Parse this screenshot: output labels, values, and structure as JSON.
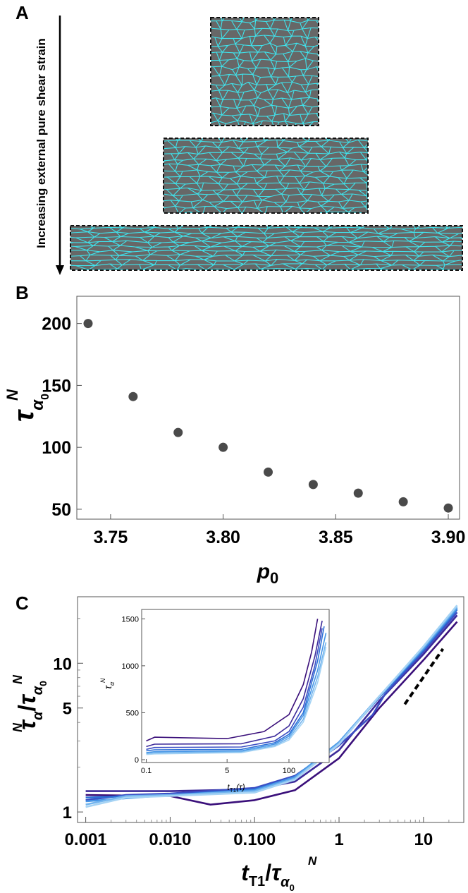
{
  "panel_a": {
    "letter": "A",
    "arrow_label": "Increasing external pure shear strain",
    "colors": {
      "cell_fill": "#676767",
      "cell_edge": "#3fe3ec",
      "border": "#111111"
    }
  },
  "chart_data": [
    {
      "panel": "B",
      "type": "scatter",
      "x": [
        3.74,
        3.76,
        3.78,
        3.8,
        3.82,
        3.84,
        3.86,
        3.88,
        3.9
      ],
      "y": [
        200,
        141,
        112,
        100,
        80,
        70,
        63,
        56,
        51
      ],
      "xlim": [
        3.735,
        3.905
      ],
      "ylim": [
        42,
        222
      ],
      "xticks": [
        "3.75",
        "3.80",
        "3.85",
        "3.90"
      ],
      "yticks": [
        "50",
        "100",
        "150",
        "200"
      ],
      "xlabel": {
        "main": "p",
        "sub": "0"
      },
      "ylabel": {
        "main": "τ",
        "sup": "N",
        "sub": "α",
        "subsub": "0"
      },
      "marker_color": "#4a4a4a"
    },
    {
      "panel": "C",
      "type": "line",
      "xscale": "log",
      "yscale": "log",
      "xlim": [
        0.0008,
        30
      ],
      "ylim": [
        0.85,
        28
      ],
      "xticks": [
        "0.001",
        "0.010",
        "0.100",
        "1",
        "10"
      ],
      "yticks": [
        "1",
        "5",
        "10"
      ],
      "xlabel": {
        "main": "t",
        "sub": "T1",
        "div": "τ",
        "div_sup": "N",
        "div_sub": "α",
        "div_subsub": "0"
      },
      "ylabel": {
        "main": "τ",
        "sup": "N",
        "sub": "α",
        "div": "τ",
        "div_sup": "N",
        "div_sub": "α",
        "div_subsub": "0"
      },
      "series": [
        {
          "color": "#3a0f7a",
          "values": [
            [
              0.001,
              1.3
            ],
            [
              0.01,
              1.28
            ],
            [
              0.03,
              1.12
            ],
            [
              0.1,
              1.2
            ],
            [
              0.3,
              1.4
            ],
            [
              1,
              2.3
            ],
            [
              3,
              5
            ],
            [
              10,
              10.5
            ],
            [
              25,
              19
            ]
          ]
        },
        {
          "color": "#3c2a9a",
          "values": [
            [
              0.001,
              1.38
            ],
            [
              0.01,
              1.38
            ],
            [
              0.1,
              1.42
            ],
            [
              0.3,
              1.6
            ],
            [
              1,
              2.6
            ],
            [
              3,
              5.6
            ],
            [
              10,
              11.5
            ],
            [
              25,
              21
            ]
          ]
        },
        {
          "color": "#3b4ec4",
          "values": [
            [
              0.001,
              1.2
            ],
            [
              0.003,
              1.3
            ],
            [
              0.01,
              1.33
            ],
            [
              0.1,
              1.45
            ],
            [
              0.3,
              1.75
            ],
            [
              1,
              2.8
            ],
            [
              2.5,
              4.5
            ],
            [
              3.5,
              6.2
            ],
            [
              10,
              12
            ],
            [
              25,
              22
            ]
          ]
        },
        {
          "color": "#2c70d6",
          "values": [
            [
              0.001,
              1.25
            ],
            [
              0.01,
              1.3
            ],
            [
              0.1,
              1.42
            ],
            [
              0.3,
              1.7
            ],
            [
              1,
              2.9
            ],
            [
              3,
              5.9
            ],
            [
              10,
              12.3
            ],
            [
              25,
              23
            ]
          ]
        },
        {
          "color": "#4595e6",
          "values": [
            [
              0.001,
              1.18
            ],
            [
              0.01,
              1.3
            ],
            [
              0.1,
              1.4
            ],
            [
              0.3,
              1.72
            ],
            [
              1,
              2.95
            ],
            [
              3,
              6
            ],
            [
              10,
              12.5
            ],
            [
              25,
              23.5
            ]
          ]
        },
        {
          "color": "#72b4ee",
          "values": [
            [
              0.001,
              1.12
            ],
            [
              0.003,
              1.28
            ],
            [
              0.01,
              1.3
            ],
            [
              0.1,
              1.38
            ],
            [
              0.3,
              1.68
            ],
            [
              1,
              2.9
            ],
            [
              3,
              6
            ],
            [
              10,
              12.8
            ],
            [
              25,
              24
            ]
          ]
        },
        {
          "color": "#a5d3f4",
          "values": [
            [
              0.001,
              1.08
            ],
            [
              0.003,
              1.25
            ],
            [
              0.01,
              1.28
            ],
            [
              0.1,
              1.35
            ],
            [
              0.3,
              1.65
            ],
            [
              1,
              2.85
            ],
            [
              3,
              6
            ],
            [
              10,
              13
            ],
            [
              25,
              24.5
            ]
          ]
        }
      ],
      "reference_line": {
        "style": "dashed",
        "color": "#000000",
        "values": [
          [
            6,
            5.3
          ],
          [
            17,
            12.5
          ]
        ]
      },
      "inset": {
        "type": "line",
        "xscale": "log",
        "xlim": [
          0.08,
          700
        ],
        "ylim": [
          -30,
          1600
        ],
        "xticks": [
          "0.1",
          "5",
          "100"
        ],
        "yticks": [
          "0",
          "500",
          "1000",
          "1500"
        ],
        "xlabel": {
          "main": "t",
          "sub": "T1",
          "paren": "(τ)"
        },
        "ylabel": {
          "main": "τ",
          "sup": "N",
          "sub": "α"
        },
        "series": [
          {
            "color": "#3a0f7a",
            "values": [
              [
                0.1,
                200
              ],
              [
                0.15,
                240
              ],
              [
                5,
                225
              ],
              [
                30,
                300
              ],
              [
                100,
                480
              ],
              [
                200,
                800
              ],
              [
                300,
                1150
              ],
              [
                400,
                1500
              ]
            ]
          },
          {
            "color": "#3c2a9a",
            "values": [
              [
                0.1,
                140
              ],
              [
                0.15,
                165
              ],
              [
                10,
                170
              ],
              [
                50,
                250
              ],
              [
                100,
                360
              ],
              [
                200,
                650
              ],
              [
                350,
                1100
              ],
              [
                500,
                1480
              ]
            ]
          },
          {
            "color": "#3b4ec4",
            "values": [
              [
                0.1,
                110
              ],
              [
                0.15,
                130
              ],
              [
                10,
                135
              ],
              [
                50,
                200
              ],
              [
                100,
                300
              ],
              [
                200,
                560
              ],
              [
                350,
                1000
              ],
              [
                500,
                1400
              ]
            ]
          },
          {
            "color": "#2c70d6",
            "values": [
              [
                0.1,
                95
              ],
              [
                0.15,
                105
              ],
              [
                10,
                110
              ],
              [
                50,
                180
              ],
              [
                100,
                270
              ],
              [
                200,
                500
              ],
              [
                400,
                1050
              ],
              [
                550,
                1420
              ]
            ]
          },
          {
            "color": "#4595e6",
            "values": [
              [
                0.1,
                75
              ],
              [
                0.15,
                85
              ],
              [
                10,
                95
              ],
              [
                50,
                165
              ],
              [
                100,
                250
              ],
              [
                200,
                470
              ],
              [
                400,
                950
              ],
              [
                600,
                1350
              ]
            ]
          },
          {
            "color": "#72b4ee",
            "values": [
              [
                0.1,
                65
              ],
              [
                0.15,
                72
              ],
              [
                10,
                85
              ],
              [
                50,
                150
              ],
              [
                100,
                230
              ],
              [
                200,
                430
              ],
              [
                400,
                880
              ],
              [
                600,
                1250
              ]
            ]
          },
          {
            "color": "#a5d3f4",
            "values": [
              [
                0.1,
                55
              ],
              [
                0.15,
                62
              ],
              [
                10,
                75
              ],
              [
                50,
                140
              ],
              [
                100,
                210
              ],
              [
                200,
                400
              ],
              [
                400,
                820
              ],
              [
                600,
                1200
              ]
            ]
          }
        ]
      }
    }
  ]
}
